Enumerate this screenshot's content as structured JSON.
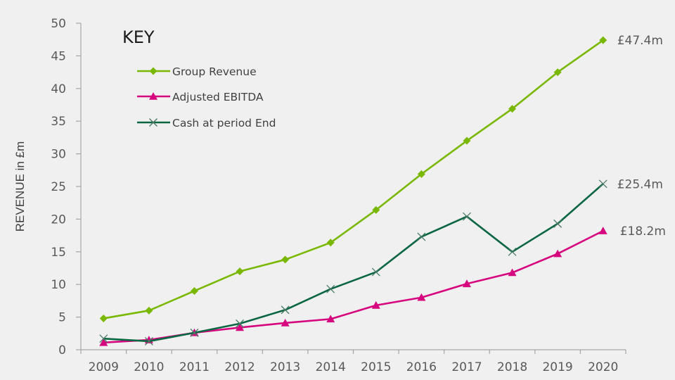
{
  "chart_data": {
    "type": "line",
    "title": "",
    "xlabel": "",
    "ylabel": "REVENUE in £m",
    "ylim": [
      0,
      50
    ],
    "yticks": [
      0,
      5,
      10,
      15,
      20,
      25,
      30,
      35,
      40,
      45,
      50
    ],
    "grid": false,
    "categories": [
      "2009",
      "2010",
      "2011",
      "2012",
      "2013",
      "2014",
      "2015",
      "2016",
      "2017",
      "2018",
      "2019",
      "2020"
    ],
    "legend": {
      "title": "KEY",
      "placement": "top-left"
    },
    "series": [
      {
        "name": "Group Revenue",
        "color": "#7ab800",
        "marker": "diamond",
        "values": [
          4.8,
          6.0,
          9.0,
          12.0,
          13.8,
          16.4,
          21.4,
          26.9,
          32.0,
          36.9,
          42.5,
          47.4
        ],
        "end_label": "£47.4m"
      },
      {
        "name": "Adjusted EBITDA",
        "color": "#d6067f",
        "marker": "triangle",
        "values": [
          1.1,
          1.5,
          2.6,
          3.4,
          4.1,
          4.7,
          6.8,
          8.0,
          10.1,
          11.8,
          14.7,
          18.2
        ],
        "end_label": "£18.2m"
      },
      {
        "name": "Cash at period End",
        "color": "#0b6643",
        "marker": "x",
        "values": [
          1.7,
          1.3,
          2.6,
          4.0,
          6.1,
          9.3,
          11.9,
          17.3,
          20.4,
          15.0,
          19.3,
          25.4
        ],
        "end_label": "£25.4m"
      }
    ]
  }
}
